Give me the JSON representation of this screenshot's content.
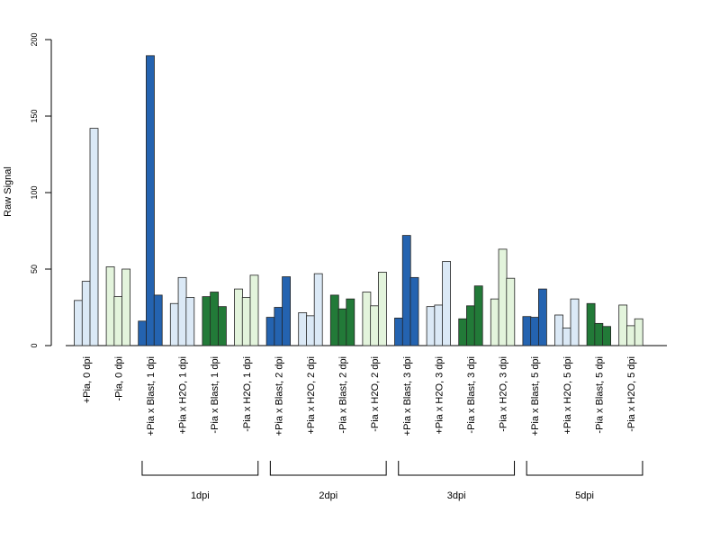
{
  "chart_data": {
    "type": "bar",
    "title": "",
    "xlabel": "",
    "ylabel": "Raw Signal",
    "ylim": [
      0,
      200
    ],
    "yticks": [
      0,
      50,
      100,
      150,
      200
    ],
    "grid": false,
    "legend": "none",
    "colors": {
      "light_blue": "#dbe9f6",
      "dark_blue": "#2463b0",
      "light_green": "#e3f4dc",
      "dark_green": "#227a38",
      "stroke": "#222222"
    },
    "groups": [
      {
        "label": "+Pia, 0 dpi",
        "color": "light_blue",
        "values": [
          29.5,
          42,
          142
        ]
      },
      {
        "label": "-Pia, 0 dpi",
        "color": "light_green",
        "values": [
          51.5,
          32,
          50
        ]
      },
      {
        "label": "+Pia x Blast, 1 dpi",
        "color": "dark_blue",
        "values": [
          16,
          189.5,
          33
        ]
      },
      {
        "label": "+Pia x H2O, 1 dpi",
        "color": "light_blue",
        "values": [
          27.5,
          44.5,
          31.5
        ]
      },
      {
        "label": "-Pia x Blast, 1 dpi",
        "color": "dark_green",
        "values": [
          32,
          35,
          25.5
        ]
      },
      {
        "label": "-Pia x H2O, 1 dpi",
        "color": "light_green",
        "values": [
          37,
          31.5,
          46
        ]
      },
      {
        "label": "+Pia x Blast, 2 dpi",
        "color": "dark_blue",
        "values": [
          18.5,
          25,
          45
        ]
      },
      {
        "label": "+Pia x H2O, 2 dpi",
        "color": "light_blue",
        "values": [
          21.5,
          19.5,
          47
        ]
      },
      {
        "label": "-Pia x Blast, 2 dpi",
        "color": "dark_green",
        "values": [
          33,
          24,
          30.5
        ]
      },
      {
        "label": "-Pia x H2O, 2 dpi",
        "color": "light_green",
        "values": [
          35,
          26,
          48
        ]
      },
      {
        "label": "+Pia x Blast, 3 dpi",
        "color": "dark_blue",
        "values": [
          18,
          72,
          44.5
        ]
      },
      {
        "label": "+Pia x H2O, 3 dpi",
        "color": "light_blue",
        "values": [
          25.5,
          26.5,
          55
        ]
      },
      {
        "label": "-Pia x Blast, 3 dpi",
        "color": "dark_green",
        "values": [
          17.5,
          26,
          39
        ]
      },
      {
        "label": "-Pia x H2O, 3 dpi",
        "color": "light_green",
        "values": [
          30.5,
          63,
          44
        ]
      },
      {
        "label": "+Pia x Blast, 5 dpi",
        "color": "dark_blue",
        "values": [
          19,
          18.5,
          37
        ]
      },
      {
        "label": "+Pia x H2O, 5 dpi",
        "color": "light_blue",
        "values": [
          20,
          11.5,
          30.5
        ]
      },
      {
        "label": "-Pia x Blast, 5 dpi",
        "color": "dark_green",
        "values": [
          27.5,
          14.5,
          12.5
        ]
      },
      {
        "label": "-Pia x H2O, 5 dpi",
        "color": "light_green",
        "values": [
          26.5,
          13,
          17.5
        ]
      }
    ],
    "time_brackets": [
      {
        "label": "1dpi",
        "from": 2,
        "to": 5
      },
      {
        "label": "2dpi",
        "from": 6,
        "to": 9
      },
      {
        "label": "3dpi",
        "from": 10,
        "to": 13
      },
      {
        "label": "5dpi",
        "from": 14,
        "to": 17
      }
    ]
  }
}
